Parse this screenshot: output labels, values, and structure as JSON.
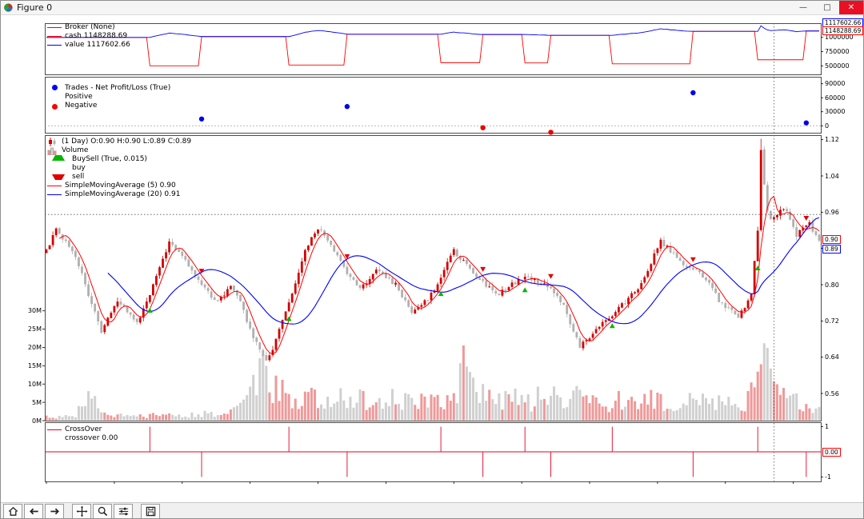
{
  "window": {
    "title": "Figure 0",
    "controls": {
      "minimize": "—",
      "maximize": "□",
      "close": "✕"
    }
  },
  "toolbar": {
    "buttons": [
      "home",
      "back",
      "forward",
      "pan",
      "zoom",
      "configure-subplots",
      "save"
    ]
  },
  "broker": {
    "legend": {
      "broker": "Broker (None)",
      "cash": "cash 1148288.69",
      "value": "value 1117602.66"
    }
  },
  "trades": {
    "legend": {
      "title": "Trades - Net Profit/Loss (True)",
      "positive": "Positive",
      "negative": "Negative"
    }
  },
  "main": {
    "legend": {
      "ohlc": "(1 Day) O:0.90 H:0.90 L:0.89 C:0.89",
      "volume": "Volume",
      "buysell": "BuySell (True, 0.015)",
      "buy": "buy",
      "sell": "sell",
      "sma5": "SimpleMovingAverage (5) 0.90",
      "sma20": "SimpleMovingAverage (20) 0.91"
    }
  },
  "crossover": {
    "legend": {
      "title": "CrossOver",
      "value": "crossover 0.00"
    }
  },
  "cursor": {
    "broker_value": "1117602.66",
    "broker_cash": "1148288.69",
    "sma5": "0.90",
    "sma20": "0.89",
    "crossover": "0.00"
  },
  "chart_data": {
    "type": "candlestick",
    "n": 240,
    "subplots": {
      "broker": {
        "ylim": [
          350000,
          1250000
        ],
        "yticks": [
          {
            "v": 1000000,
            "label": "1000000"
          },
          {
            "v": 750000,
            "label": "750000"
          },
          {
            "v": 500000,
            "label": "500000"
          }
        ],
        "series": [
          "cash",
          "value"
        ],
        "start_cash": 1000000,
        "stake_cash": 500000
      },
      "trades": {
        "ylim": [
          -15000,
          105000
        ],
        "yticks": [
          {
            "v": 90000,
            "label": "90000"
          },
          {
            "v": 60000,
            "label": "60000"
          },
          {
            "v": 30000,
            "label": "30000"
          },
          {
            "v": 0,
            "label": "0"
          }
        ]
      },
      "main": {
        "price_ylim": [
          0.5,
          1.13
        ],
        "price_yticks": [
          {
            "v": 1.12,
            "label": "1.12"
          },
          {
            "v": 1.04,
            "label": "1.04"
          },
          {
            "v": 0.96,
            "label": "0.96"
          },
          {
            "v": 0.88,
            "label": "0.88"
          },
          {
            "v": 0.8,
            "label": "0.80"
          },
          {
            "v": 0.72,
            "label": "0.72"
          },
          {
            "v": 0.64,
            "label": "0.64"
          },
          {
            "v": 0.56,
            "label": "0.56"
          }
        ],
        "volume_ylim": [
          0,
          78000000
        ],
        "volume_yticks": [
          {
            "v": 30000000,
            "label": "30M"
          },
          {
            "v": 25000000,
            "label": "25M"
          },
          {
            "v": 20000000,
            "label": "20M"
          },
          {
            "v": 15000000,
            "label": "15M"
          },
          {
            "v": 10000000,
            "label": "10M"
          },
          {
            "v": 5000000,
            "label": "5M"
          },
          {
            "v": 0,
            "label": "0M"
          }
        ]
      },
      "crossover": {
        "ylim": [
          -1.18,
          1.18
        ],
        "yticks": [
          {
            "v": 1,
            "label": "1"
          },
          {
            "v": -1,
            "label": "-1"
          }
        ]
      }
    },
    "sma_periods": [
      5,
      20
    ],
    "crosshair": {
      "x_index": 225,
      "price": 0.955
    },
    "price_anchors": [
      [
        0,
        0.875
      ],
      [
        2,
        0.905
      ],
      [
        3,
        0.925
      ],
      [
        5,
        0.9
      ],
      [
        8,
        0.875
      ],
      [
        10,
        0.845
      ],
      [
        12,
        0.8
      ],
      [
        14,
        0.76
      ],
      [
        17,
        0.695
      ],
      [
        19,
        0.73
      ],
      [
        22,
        0.765
      ],
      [
        25,
        0.74
      ],
      [
        28,
        0.715
      ],
      [
        31,
        0.76
      ],
      [
        34,
        0.82
      ],
      [
        38,
        0.895
      ],
      [
        41,
        0.87
      ],
      [
        45,
        0.835
      ],
      [
        48,
        0.8
      ],
      [
        52,
        0.765
      ],
      [
        55,
        0.78
      ],
      [
        57,
        0.8
      ],
      [
        60,
        0.76
      ],
      [
        63,
        0.7
      ],
      [
        66,
        0.655
      ],
      [
        68,
        0.635
      ],
      [
        70,
        0.66
      ],
      [
        73,
        0.72
      ],
      [
        77,
        0.8
      ],
      [
        80,
        0.875
      ],
      [
        84,
        0.925
      ],
      [
        87,
        0.9
      ],
      [
        90,
        0.86
      ],
      [
        93,
        0.825
      ],
      [
        97,
        0.79
      ],
      [
        100,
        0.81
      ],
      [
        102,
        0.83
      ],
      [
        105,
        0.815
      ],
      [
        108,
        0.8
      ],
      [
        111,
        0.765
      ],
      [
        113,
        0.74
      ],
      [
        116,
        0.755
      ],
      [
        118,
        0.77
      ],
      [
        121,
        0.8
      ],
      [
        124,
        0.85
      ],
      [
        126,
        0.875
      ],
      [
        129,
        0.85
      ],
      [
        133,
        0.82
      ],
      [
        136,
        0.8
      ],
      [
        140,
        0.78
      ],
      [
        144,
        0.8
      ],
      [
        148,
        0.82
      ],
      [
        151,
        0.81
      ],
      [
        155,
        0.795
      ],
      [
        158,
        0.775
      ],
      [
        160,
        0.755
      ],
      [
        162,
        0.71
      ],
      [
        165,
        0.665
      ],
      [
        168,
        0.685
      ],
      [
        172,
        0.72
      ],
      [
        176,
        0.74
      ],
      [
        180,
        0.77
      ],
      [
        184,
        0.8
      ],
      [
        187,
        0.85
      ],
      [
        190,
        0.895
      ],
      [
        193,
        0.875
      ],
      [
        196,
        0.85
      ],
      [
        200,
        0.835
      ],
      [
        203,
        0.82
      ],
      [
        206,
        0.79
      ],
      [
        208,
        0.765
      ],
      [
        211,
        0.745
      ],
      [
        214,
        0.73
      ],
      [
        216,
        0.75
      ],
      [
        218,
        0.78
      ],
      [
        220,
        0.92
      ],
      [
        221,
        1.1
      ],
      [
        222,
        1.02
      ],
      [
        223,
        0.96
      ],
      [
        224,
        0.945
      ],
      [
        226,
        0.955
      ],
      [
        228,
        0.97
      ],
      [
        230,
        0.945
      ],
      [
        232,
        0.91
      ],
      [
        234,
        0.925
      ],
      [
        236,
        0.935
      ],
      [
        238,
        0.905
      ],
      [
        239,
        0.895
      ]
    ],
    "volume_anchors_m": [
      [
        0,
        1.0
      ],
      [
        8,
        1.2
      ],
      [
        12,
        4
      ],
      [
        14,
        8
      ],
      [
        16,
        4
      ],
      [
        18,
        2
      ],
      [
        24,
        1.4
      ],
      [
        30,
        1.2
      ],
      [
        36,
        1.6
      ],
      [
        42,
        1.4
      ],
      [
        48,
        1.8
      ],
      [
        54,
        2.0
      ],
      [
        58,
        2.5
      ],
      [
        61,
        4
      ],
      [
        63,
        9
      ],
      [
        65,
        12
      ],
      [
        67,
        13
      ],
      [
        69,
        11
      ],
      [
        71,
        9
      ],
      [
        74,
        7.5
      ],
      [
        78,
        6.5
      ],
      [
        82,
        6
      ],
      [
        86,
        5.5
      ],
      [
        90,
        6
      ],
      [
        94,
        6.5
      ],
      [
        98,
        5.5
      ],
      [
        102,
        5
      ],
      [
        106,
        6
      ],
      [
        110,
        5
      ],
      [
        114,
        5.5
      ],
      [
        118,
        5
      ],
      [
        122,
        5.5
      ],
      [
        126,
        6
      ],
      [
        128,
        14
      ],
      [
        129,
        15
      ],
      [
        131,
        9
      ],
      [
        134,
        7
      ],
      [
        138,
        6
      ],
      [
        142,
        5.5
      ],
      [
        146,
        6
      ],
      [
        150,
        5.5
      ],
      [
        154,
        6.5
      ],
      [
        158,
        6
      ],
      [
        162,
        7
      ],
      [
        166,
        6.5
      ],
      [
        170,
        5.5
      ],
      [
        174,
        5
      ],
      [
        178,
        5.5
      ],
      [
        182,
        5
      ],
      [
        186,
        5.5
      ],
      [
        190,
        6
      ],
      [
        194,
        5
      ],
      [
        198,
        5.5
      ],
      [
        202,
        5
      ],
      [
        206,
        6
      ],
      [
        210,
        4.5
      ],
      [
        213,
        4
      ],
      [
        216,
        5
      ],
      [
        219,
        9
      ],
      [
        221,
        22
      ],
      [
        222,
        16
      ],
      [
        224,
        10
      ],
      [
        227,
        8
      ],
      [
        230,
        6.5
      ],
      [
        233,
        5.5
      ],
      [
        236,
        4.5
      ],
      [
        239,
        4
      ]
    ],
    "colors": {
      "up": "#d40000",
      "down": "#b0b0b0",
      "vol_up": "rgba(212,0,0,0.40)",
      "vol_down": "rgba(150,150,150,0.45)",
      "sma5": "#ff0000",
      "sma20": "#0000ff",
      "cash": "#ff0000",
      "value": "#0000ff",
      "buy": "#00b800",
      "sell": "#e00000",
      "pos": "#0000ee",
      "neg": "#ee0000",
      "crossover": "#e60023"
    }
  }
}
